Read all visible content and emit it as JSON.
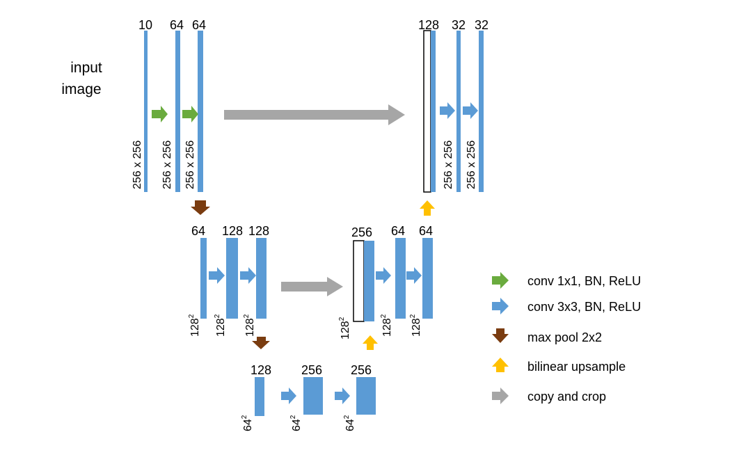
{
  "colors": {
    "blue": "#5b9bd5",
    "green": "#6aab3e",
    "brown": "#7a3c10",
    "yellow": "#ffc000",
    "gray": "#a6a6a6",
    "skip_fill": "#ffffff",
    "skip_stroke": "#000000"
  },
  "input_label": [
    "input",
    "image"
  ],
  "levels": {
    "enc1": {
      "channels": [
        "10",
        "64",
        "64"
      ],
      "sizes": [
        "256 x 256",
        "256 x 256",
        "256 x 256"
      ]
    },
    "enc2": {
      "channels": [
        "64",
        "128",
        "128"
      ],
      "sizes": [
        "128",
        "128",
        "128"
      ],
      "size_exp": "2"
    },
    "bottleneck": {
      "channels": [
        "128",
        "256",
        "256"
      ],
      "sizes": [
        "64",
        "64",
        "64"
      ],
      "size_exp": "2"
    },
    "dec2": {
      "channels": [
        "256",
        "64",
        "64"
      ],
      "sizes": [
        "128",
        "128",
        "128"
      ],
      "size_exp": "2"
    },
    "dec1": {
      "channels": [
        "128",
        "32",
        "32"
      ],
      "sizes": [
        "256 x 256",
        "256 x 256"
      ]
    }
  },
  "legend": [
    {
      "icon": "green-right-arrow-icon",
      "label": "conv 1x1, BN, ReLU"
    },
    {
      "icon": "blue-right-arrow-icon",
      "label": "conv 3x3, BN, ReLU"
    },
    {
      "icon": "brown-down-arrow-icon",
      "label": "max pool 2x2"
    },
    {
      "icon": "yellow-up-arrow-icon",
      "label": "bilinear upsample"
    },
    {
      "icon": "gray-right-arrow-icon",
      "label": "copy and crop"
    }
  ]
}
